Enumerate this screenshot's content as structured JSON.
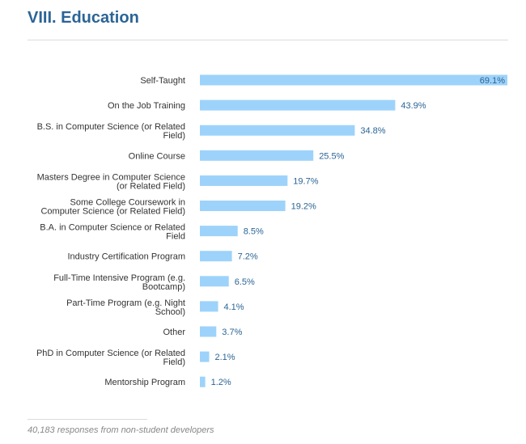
{
  "header": {
    "title": "VIII. Education"
  },
  "colors": {
    "bar": "#9dd3fa",
    "value_label_outside": "#2a6496",
    "value_label_inside": "#2a6496",
    "category_label": "#333333"
  },
  "chart_data": {
    "type": "bar",
    "orientation": "horizontal",
    "title": "VIII. Education",
    "xlabel": "",
    "ylabel": "",
    "xlim": [
      0,
      69.1
    ],
    "grid": false,
    "unit": "%",
    "categories": [
      "Self-Taught",
      "On the Job Training",
      "B.S. in Computer Science (or Related Field)",
      "Online Course",
      "Masters Degree in Computer Science (or Related Field)",
      "Some College Coursework in Computer Science (or Related Field)",
      "B.A. in Computer Science or Related Field",
      "Industry Certification Program",
      "Full-Time Intensive Program (e.g. Bootcamp)",
      "Part-Time Program (e.g. Night School)",
      "Other",
      "PhD in Computer Science (or Related Field)",
      "Mentorship Program"
    ],
    "label_lines": [
      [
        "Self-Taught"
      ],
      [
        "On the Job Training"
      ],
      [
        "B.S. in Computer Science (or Related",
        "Field)"
      ],
      [
        "Online Course"
      ],
      [
        "Masters Degree in Computer Science",
        "(or Related Field)"
      ],
      [
        "Some College Coursework in",
        "Computer Science (or Related Field)"
      ],
      [
        "B.A. in Computer Science or Related",
        "Field"
      ],
      [
        "Industry Certification Program"
      ],
      [
        "Full-Time Intensive Program (e.g.",
        "Bootcamp)"
      ],
      [
        "Part-Time Program (e.g. Night",
        "School)"
      ],
      [
        "Other"
      ],
      [
        "PhD in Computer Science (or Related",
        "Field)"
      ],
      [
        "Mentorship Program"
      ]
    ],
    "values": [
      69.1,
      43.9,
      34.8,
      25.5,
      19.7,
      19.2,
      8.5,
      7.2,
      6.5,
      4.1,
      3.7,
      2.1,
      1.2
    ],
    "value_labels": [
      "69.1%",
      "43.9%",
      "34.8%",
      "25.5%",
      "19.7%",
      "19.2%",
      "8.5%",
      "7.2%",
      "6.5%",
      "4.1%",
      "3.7%",
      "2.1%",
      "1.2%"
    ]
  },
  "footnote": {
    "text": "40,183 responses from non-student developers"
  }
}
